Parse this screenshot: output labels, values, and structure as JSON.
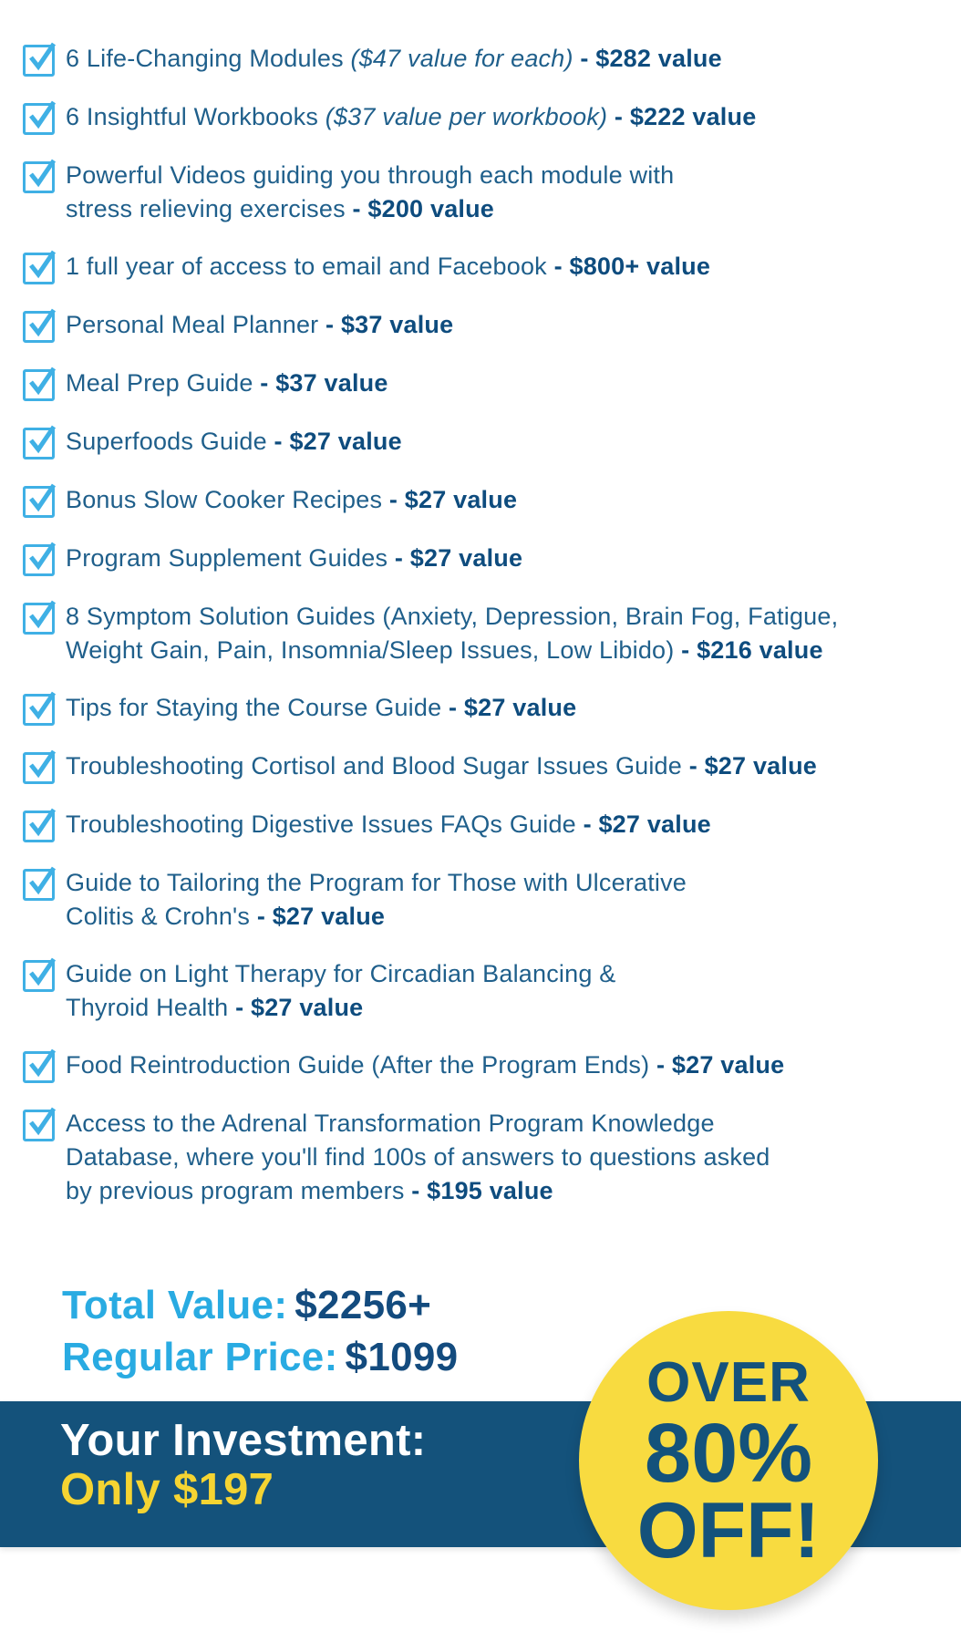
{
  "colors": {
    "text_regular": "#1F5F8B",
    "text_bold": "#0E4C7E",
    "accent_light_blue": "#29ABE2",
    "checkbox_blue": "#3FB0E5",
    "banner_blue": "#14527B",
    "yellow_text": "#F5D432",
    "badge_yellow": "#F8DB40",
    "banner_text_white": "#FFFFFF"
  },
  "checklist": {
    "checkbox_icon": "checkbox-checked-icon",
    "items": [
      {
        "segments": [
          {
            "t": "6 Life-Changing Modules ",
            "s": "r"
          },
          {
            "t": "($47 value for each)",
            "s": "i"
          },
          {
            "t": " - $282 value",
            "s": "b"
          }
        ]
      },
      {
        "segments": [
          {
            "t": "6 Insightful Workbooks ",
            "s": "r"
          },
          {
            "t": "($37 value per workbook)",
            "s": "i"
          },
          {
            "t": " - $222 value",
            "s": "b"
          }
        ]
      },
      {
        "segments": [
          {
            "t": "Powerful Videos guiding you through each module with",
            "s": "r"
          },
          {
            "t": "",
            "s": "br"
          },
          {
            "t": "stress relieving exercises",
            "s": "r"
          },
          {
            "t": " - $200 value",
            "s": "b"
          }
        ]
      },
      {
        "segments": [
          {
            "t": "1 full year of access to email and Facebook",
            "s": "r"
          },
          {
            "t": " - $800+ value",
            "s": "b"
          }
        ]
      },
      {
        "segments": [
          {
            "t": "Personal Meal Planner",
            "s": "r"
          },
          {
            "t": " - $37 value",
            "s": "b"
          }
        ]
      },
      {
        "segments": [
          {
            "t": "Meal Prep Guide",
            "s": "r"
          },
          {
            "t": " - $37 value",
            "s": "b"
          }
        ]
      },
      {
        "segments": [
          {
            "t": "Superfoods Guide",
            "s": "r"
          },
          {
            "t": " - $27 value",
            "s": "b"
          }
        ]
      },
      {
        "segments": [
          {
            "t": "Bonus Slow Cooker Recipes",
            "s": "r"
          },
          {
            "t": " - $27 value",
            "s": "b"
          }
        ]
      },
      {
        "segments": [
          {
            "t": "Program Supplement Guides",
            "s": "r"
          },
          {
            "t": " - $27 value",
            "s": "b"
          }
        ]
      },
      {
        "segments": [
          {
            "t": "8 Symptom Solution Guides (Anxiety, Depression, Brain Fog, Fatigue,",
            "s": "r"
          },
          {
            "t": "",
            "s": "br"
          },
          {
            "t": "Weight Gain, Pain, Insomnia/Sleep Issues, Low Libido)",
            "s": "r"
          },
          {
            "t": " - $216 value",
            "s": "b"
          }
        ]
      },
      {
        "segments": [
          {
            "t": "Tips for Staying the Course Guide",
            "s": "r"
          },
          {
            "t": " - $27 value",
            "s": "b"
          }
        ]
      },
      {
        "segments": [
          {
            "t": "Troubleshooting Cortisol and Blood Sugar Issues Guide",
            "s": "r"
          },
          {
            "t": " - $27 value",
            "s": "b"
          }
        ]
      },
      {
        "segments": [
          {
            "t": "Troubleshooting Digestive Issues FAQs Guide",
            "s": "r"
          },
          {
            "t": " - $27 value",
            "s": "b"
          }
        ]
      },
      {
        "segments": [
          {
            "t": "Guide to Tailoring the Program for Those with Ulcerative",
            "s": "r"
          },
          {
            "t": "",
            "s": "br"
          },
          {
            "t": "Colitis & Crohn's",
            "s": "r"
          },
          {
            "t": " - $27 value",
            "s": "b"
          }
        ]
      },
      {
        "segments": [
          {
            "t": "Guide on Light Therapy for Circadian Balancing &",
            "s": "r"
          },
          {
            "t": "",
            "s": "br"
          },
          {
            "t": "Thyroid Health",
            "s": "r"
          },
          {
            "t": " - $27 value",
            "s": "b"
          }
        ]
      },
      {
        "segments": [
          {
            "t": "Food Reintroduction Guide (After the Program Ends)",
            "s": "r"
          },
          {
            "t": " - $27 value",
            "s": "b"
          }
        ]
      },
      {
        "segments": [
          {
            "t": "Access to the Adrenal Transformation Program Knowledge",
            "s": "r"
          },
          {
            "t": "",
            "s": "br"
          },
          {
            "t": "Database, where you'll find 100s of answers to questions asked",
            "s": "r"
          },
          {
            "t": "",
            "s": "br"
          },
          {
            "t": "by previous program members",
            "s": "r"
          },
          {
            "t": " - $195 value",
            "s": "b"
          }
        ]
      }
    ]
  },
  "summary": {
    "rows": [
      {
        "label": "Total Value:",
        "amount": "$2256+"
      },
      {
        "label": "Regular Price:",
        "amount": "$1099"
      }
    ]
  },
  "investment": {
    "label": "Your Investment:",
    "amount": "Only $197"
  },
  "badge": {
    "lines": [
      "OVER",
      "80%",
      "OFF!"
    ]
  }
}
